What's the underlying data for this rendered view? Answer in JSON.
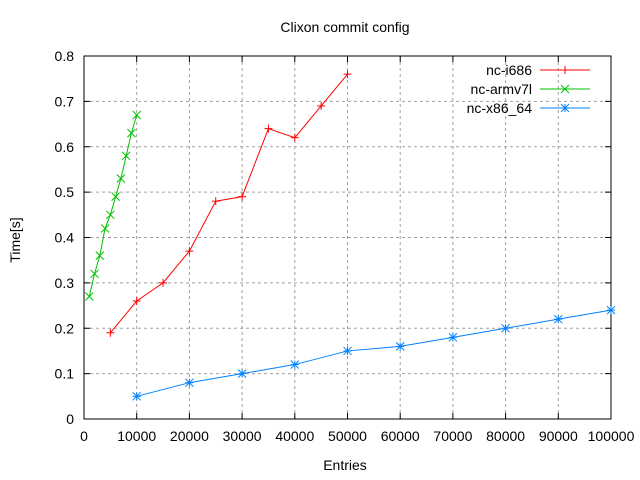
{
  "chart_data": {
    "type": "line",
    "title": "Clixon commit config",
    "xlabel": "Entries",
    "ylabel": "Time[s]",
    "xlim": [
      0,
      100000
    ],
    "ylim": [
      0,
      0.8
    ],
    "xticks": [
      0,
      10000,
      20000,
      30000,
      40000,
      50000,
      60000,
      70000,
      80000,
      90000,
      100000
    ],
    "yticks": [
      0,
      0.1,
      0.2,
      0.3,
      0.4,
      0.5,
      0.6,
      0.7,
      0.8
    ],
    "xtick_labels": [
      "0",
      "10000",
      "20000",
      "30000",
      "40000",
      "50000",
      "60000",
      "70000",
      "80000",
      "90000",
      "100000"
    ],
    "ytick_labels": [
      "0",
      "0.1",
      "0.2",
      "0.3",
      "0.4",
      "0.5",
      "0.6",
      "0.7",
      "0.8"
    ],
    "grid": true,
    "legend_position": "top-right",
    "series": [
      {
        "name": "nc-i686",
        "color": "#ff0000",
        "marker": "plus",
        "x": [
          5000,
          10000,
          15000,
          20000,
          25000,
          30000,
          35000,
          40000,
          45000,
          50000
        ],
        "y": [
          0.19,
          0.26,
          0.3,
          0.37,
          0.48,
          0.49,
          0.64,
          0.62,
          0.69,
          0.76
        ]
      },
      {
        "name": "nc-armv7l",
        "color": "#00c000",
        "marker": "cross",
        "x": [
          1000,
          2000,
          3000,
          4000,
          5000,
          6000,
          7000,
          8000,
          9000,
          10000
        ],
        "y": [
          0.27,
          0.32,
          0.36,
          0.42,
          0.45,
          0.49,
          0.53,
          0.58,
          0.63,
          0.67
        ]
      },
      {
        "name": "nc-x86_64",
        "color": "#0080ff",
        "marker": "star",
        "x": [
          10000,
          20000,
          30000,
          40000,
          50000,
          60000,
          70000,
          80000,
          90000,
          100000
        ],
        "y": [
          0.05,
          0.08,
          0.1,
          0.12,
          0.15,
          0.16,
          0.18,
          0.2,
          0.22,
          0.24
        ]
      }
    ]
  }
}
